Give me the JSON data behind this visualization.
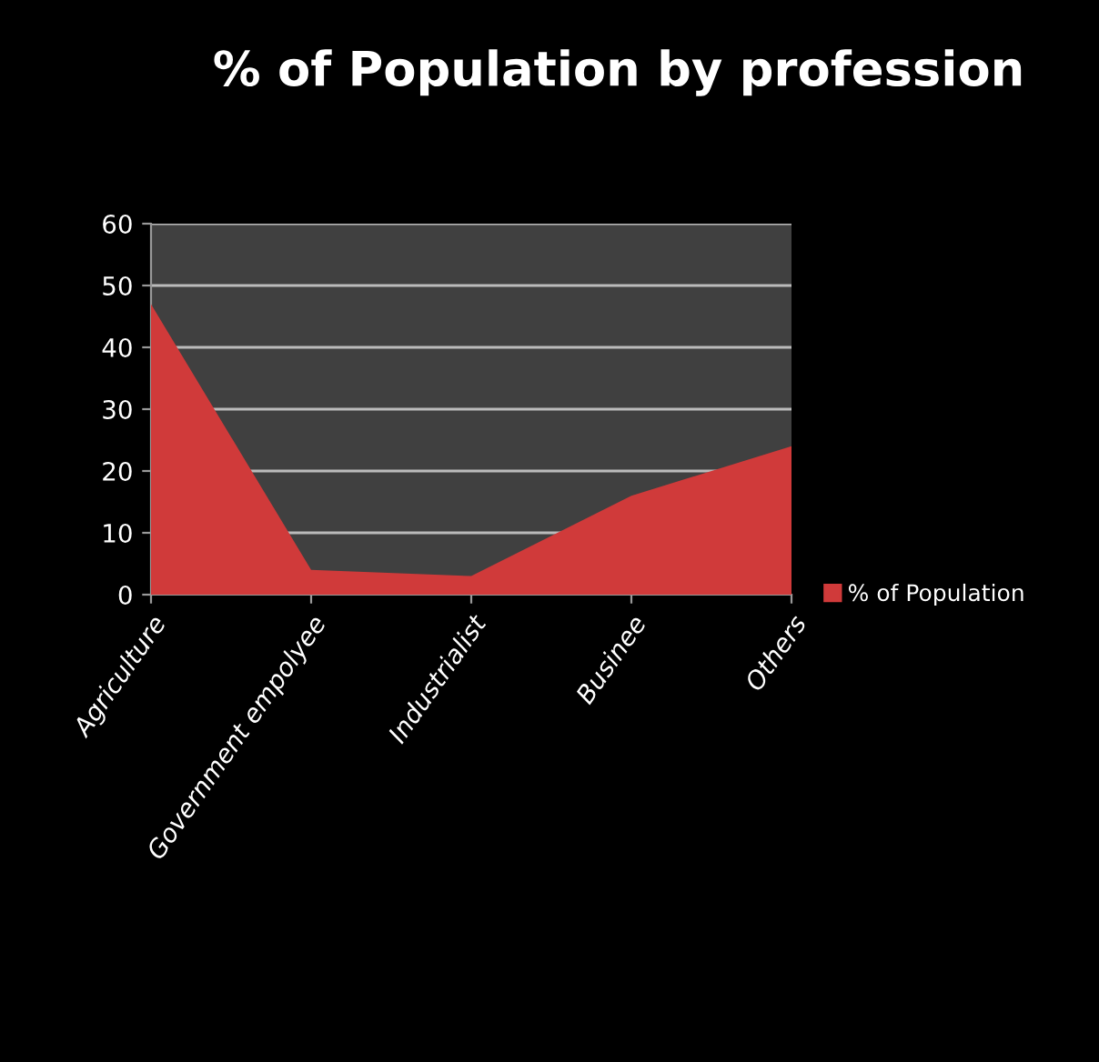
{
  "chart_data": {
    "type": "area",
    "title": "% of Population by profession",
    "categories": [
      "Agriculture",
      "Government empolyee",
      "Industrialist",
      "Businee",
      "Others"
    ],
    "series": [
      {
        "name": "% of Population",
        "color": "#d03a3a",
        "values": [
          47,
          4,
          3,
          16,
          24
        ]
      }
    ],
    "ylim": [
      0,
      60
    ],
    "yticks": [
      0,
      10,
      20,
      30,
      40,
      50,
      60
    ],
    "grid": "y",
    "legend": "right"
  }
}
